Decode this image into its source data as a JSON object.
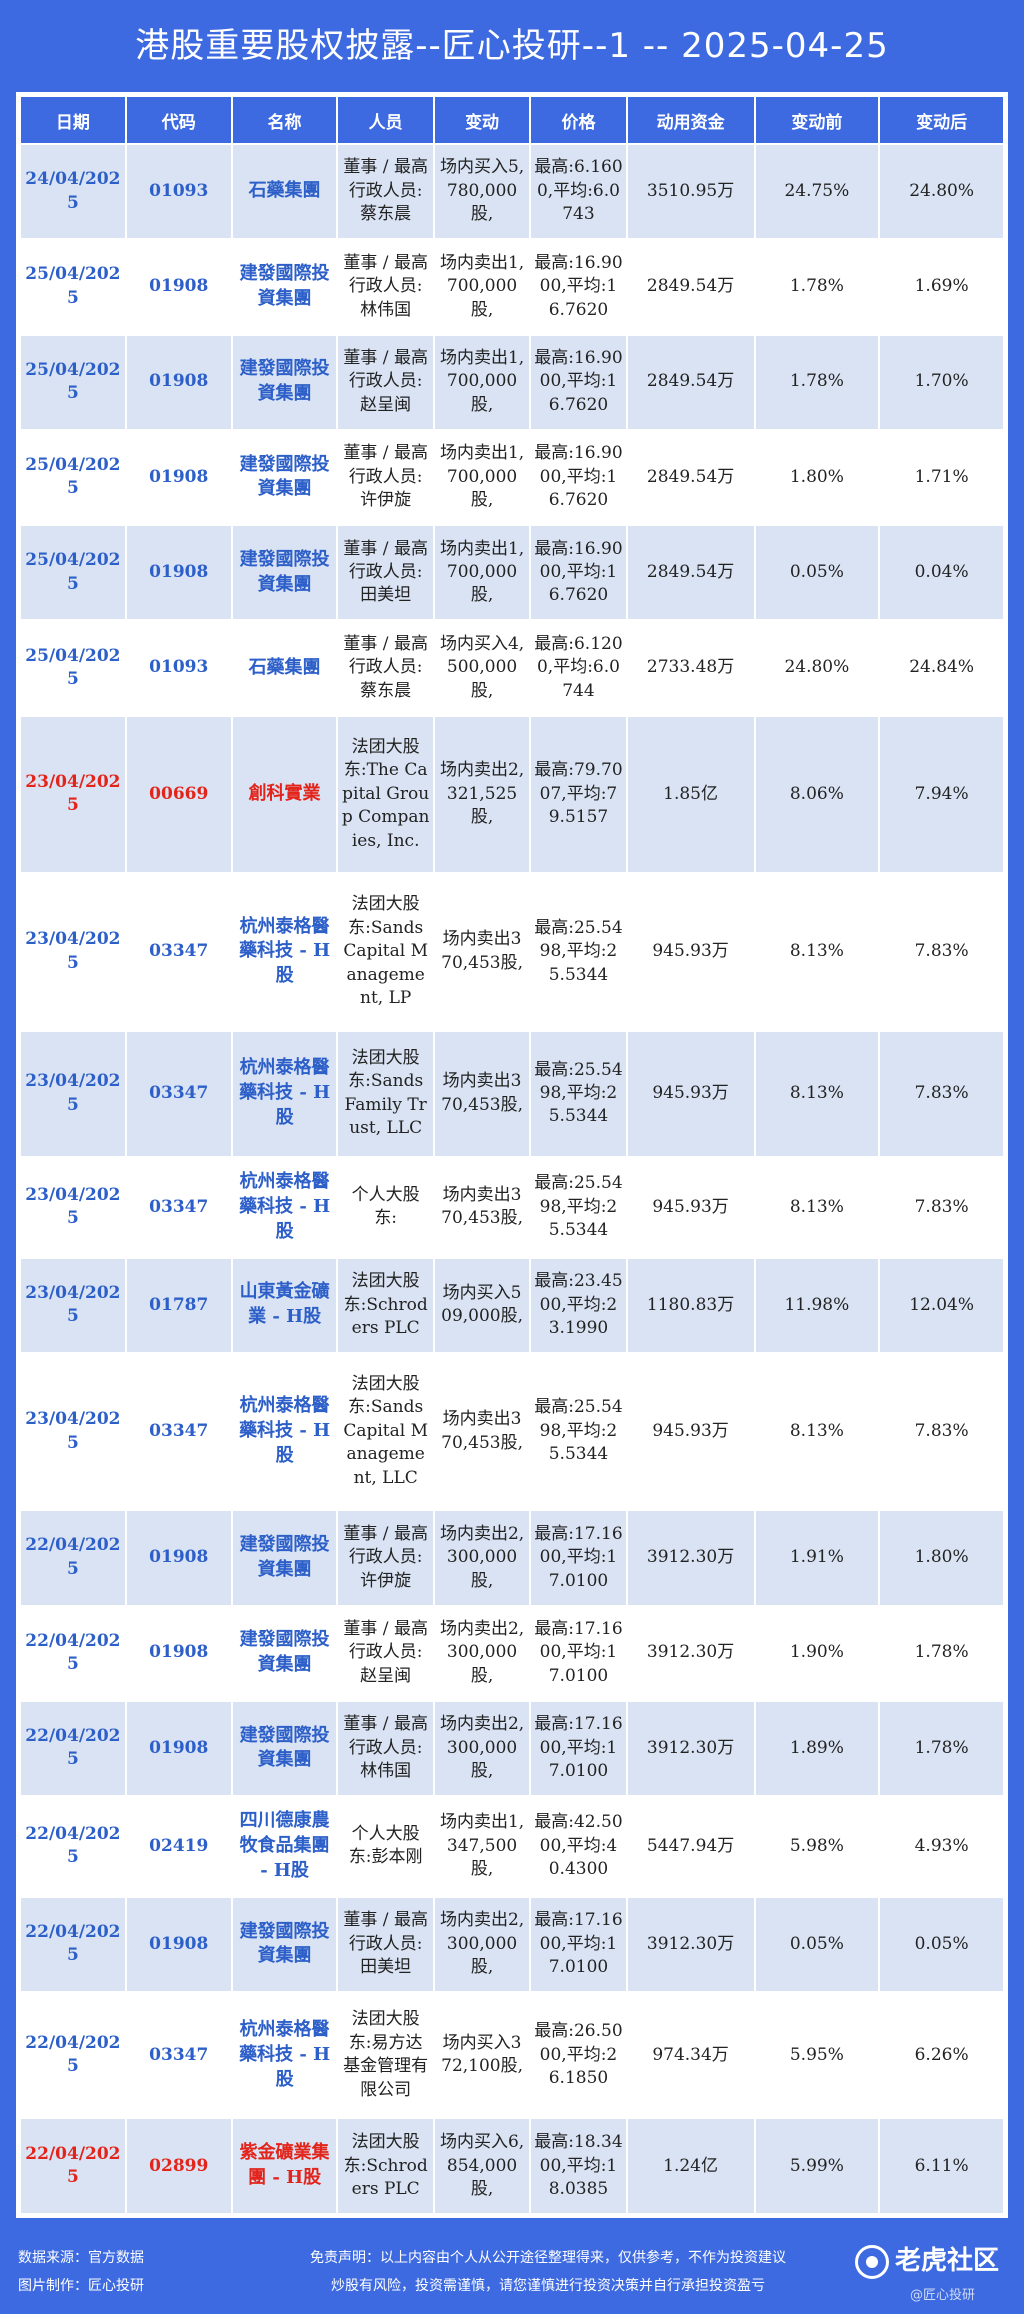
{
  "title": "港股重要股权披露--匠心投研--1 -- 2025-04-25",
  "headers": [
    "日期",
    "代码",
    "名称",
    "人员",
    "变动",
    "价格",
    "动用资金",
    "变动前",
    "变动后"
  ],
  "rows": [
    {
      "date": "24/04/2025",
      "code": "01093",
      "name": "石藥集團",
      "person": "董事 / 最高行政人员:蔡东晨",
      "change": "场内买入5,780,000股,",
      "price": "最高:6.1600,平均:6.0743",
      "amount": "3510.95万",
      "before": "24.75%",
      "after": "24.80%"
    },
    {
      "date": "25/04/2025",
      "code": "01908",
      "name": "建發國際投資集團",
      "person": "董事 / 最高行政人员:林伟国",
      "change": "场内卖出1,700,000股,",
      "price": "最高:16.9000,平均:16.7620",
      "amount": "2849.54万",
      "before": "1.78%",
      "after": "1.69%"
    },
    {
      "date": "25/04/2025",
      "code": "01908",
      "name": "建發國際投資集團",
      "person": "董事 / 最高行政人员:赵呈闽",
      "change": "场内卖出1,700,000股,",
      "price": "最高:16.9000,平均:16.7620",
      "amount": "2849.54万",
      "before": "1.78%",
      "after": "1.70%"
    },
    {
      "date": "25/04/2025",
      "code": "01908",
      "name": "建發國際投資集團",
      "person": "董事 / 最高行政人员:许伊旋",
      "change": "场内卖出1,700,000股,",
      "price": "最高:16.9000,平均:16.7620",
      "amount": "2849.54万",
      "before": "1.80%",
      "after": "1.71%"
    },
    {
      "date": "25/04/2025",
      "code": "01908",
      "name": "建發國際投資集團",
      "person": "董事 / 最高行政人员:田美坦",
      "change": "场内卖出1,700,000股,",
      "price": "最高:16.9000,平均:16.7620",
      "amount": "2849.54万",
      "before": "0.05%",
      "after": "0.04%"
    },
    {
      "date": "25/04/2025",
      "code": "01093",
      "name": "石藥集團",
      "person": "董事 / 最高行政人员:蔡东晨",
      "change": "场内买入4,500,000股,",
      "price": "最高:6.1200,平均:6.0744",
      "amount": "2733.48万",
      "before": "24.80%",
      "after": "24.84%"
    },
    {
      "date": "23/04/2025",
      "code": "00669",
      "name": "創科實業",
      "person": "法团大股东:The Capital Group Companies, Inc.",
      "change": "场内卖出2,321,525股,",
      "price": "最高:79.7007,平均:79.5157",
      "amount": "1.85亿",
      "before": "8.06%",
      "after": "7.94%",
      "highlight": true
    },
    {
      "date": "23/04/2025",
      "code": "03347",
      "name": "杭州泰格醫藥科技 - H股",
      "person": "法团大股东:Sands Capital Management, LP",
      "change": "场内卖出370,453股,",
      "price": "最高:25.5498,平均:25.5344",
      "amount": "945.93万",
      "before": "8.13%",
      "after": "7.83%"
    },
    {
      "date": "23/04/2025",
      "code": "03347",
      "name": "杭州泰格醫藥科技 - H股",
      "person": "法团大股东:Sands Family Trust, LLC",
      "change": "场内卖出370,453股,",
      "price": "最高:25.5498,平均:25.5344",
      "amount": "945.93万",
      "before": "8.13%",
      "after": "7.83%"
    },
    {
      "date": "23/04/2025",
      "code": "03347",
      "name": "杭州泰格醫藥科技 - H股",
      "person": "个人大股东:",
      "change": "场内卖出370,453股,",
      "price": "最高:25.5498,平均:25.5344",
      "amount": "945.93万",
      "before": "8.13%",
      "after": "7.83%"
    },
    {
      "date": "23/04/2025",
      "code": "01787",
      "name": "山東黃金礦業 - H股",
      "person": "法团大股东:Schroders PLC",
      "change": "场内买入509,000股,",
      "price": "最高:23.4500,平均:23.1990",
      "amount": "1180.83万",
      "before": "11.98%",
      "after": "12.04%"
    },
    {
      "date": "23/04/2025",
      "code": "03347",
      "name": "杭州泰格醫藥科技 - H股",
      "person": "法团大股东:Sands Capital Management, LLC",
      "change": "场内卖出370,453股,",
      "price": "最高:25.5498,平均:25.5344",
      "amount": "945.93万",
      "before": "8.13%",
      "after": "7.83%"
    },
    {
      "date": "22/04/2025",
      "code": "01908",
      "name": "建發國際投資集團",
      "person": "董事 / 最高行政人员:许伊旋",
      "change": "场内卖出2,300,000股,",
      "price": "最高:17.1600,平均:17.0100",
      "amount": "3912.30万",
      "before": "1.91%",
      "after": "1.80%"
    },
    {
      "date": "22/04/2025",
      "code": "01908",
      "name": "建發國際投資集團",
      "person": "董事 / 最高行政人员:赵呈闽",
      "change": "场内卖出2,300,000股,",
      "price": "最高:17.1600,平均:17.0100",
      "amount": "3912.30万",
      "before": "1.90%",
      "after": "1.78%"
    },
    {
      "date": "22/04/2025",
      "code": "01908",
      "name": "建發國際投資集團",
      "person": "董事 / 最高行政人员:林伟国",
      "change": "场内卖出2,300,000股,",
      "price": "最高:17.1600,平均:17.0100",
      "amount": "3912.30万",
      "before": "1.89%",
      "after": "1.78%"
    },
    {
      "date": "22/04/2025",
      "code": "02419",
      "name": "四川德康農牧食品集團 - H股",
      "person": "个人大股东:彭本刚",
      "change": "场内卖出1,347,500股,",
      "price": "最高:42.5000,平均:40.4300",
      "amount": "5447.94万",
      "before": "5.98%",
      "after": "4.93%"
    },
    {
      "date": "22/04/2025",
      "code": "01908",
      "name": "建發國際投資集團",
      "person": "董事 / 最高行政人员:田美坦",
      "change": "场内卖出2,300,000股,",
      "price": "最高:17.1600,平均:17.0100",
      "amount": "3912.30万",
      "before": "0.05%",
      "after": "0.05%"
    },
    {
      "date": "22/04/2025",
      "code": "03347",
      "name": "杭州泰格醫藥科技 - H股",
      "person": "法团大股东:易方达基金管理有限公司",
      "change": "场内买入372,100股,",
      "price": "最高:26.5000,平均:26.1850",
      "amount": "974.34万",
      "before": "5.95%",
      "after": "6.26%"
    },
    {
      "date": "22/04/2025",
      "code": "02899",
      "name": "紫金礦業集團 - H股",
      "person": "法团大股东:Schroders PLC",
      "change": "场内买入6,854,000股,",
      "price": "最高:18.3400,平均:18.0385",
      "amount": "1.24亿",
      "before": "5.99%",
      "after": "6.11%",
      "highlight": true
    }
  ],
  "footer": {
    "source": "数据来源：官方数据",
    "made_by": "图片制作：匠心投研",
    "disclaimer_1": "免责声明：以上内容由个人从公开途径整理得来，仅供参考，不作为投资建议",
    "disclaimer_2": "炒股有风险，投资需谨慎，请您谨慎进行投资决策并自行承担投资盈亏",
    "logo": "老虎社区",
    "watermark": "@匠心投研"
  },
  "colors": {
    "header_bg": "#3d6ae0",
    "row_alt": "#d9e3f3",
    "link_text": "#2d5fc9",
    "highlight_text": "#e3241b"
  }
}
